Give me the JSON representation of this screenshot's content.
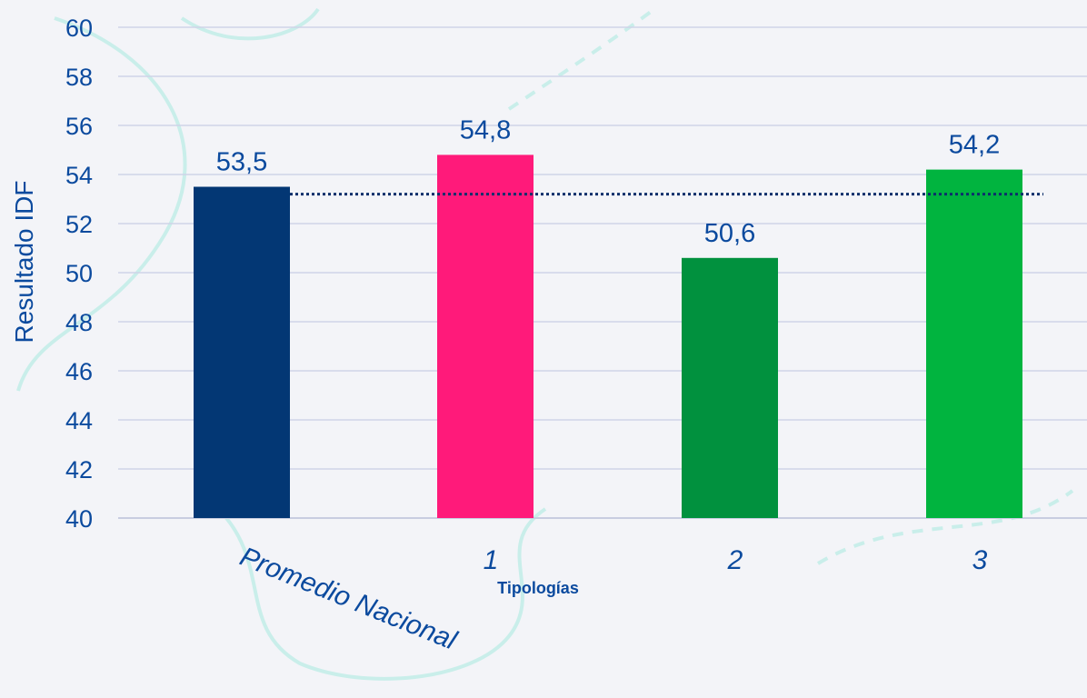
{
  "chart_data": {
    "type": "bar",
    "categories": [
      "Promedio Nacional",
      "1",
      "2",
      "3"
    ],
    "values": [
      53.5,
      54.8,
      50.6,
      54.2
    ],
    "value_labels": [
      "53,5",
      "54,8",
      "50,6",
      "54,2"
    ],
    "bar_colors": [
      "#033774",
      "#ff1a7a",
      "#01913e",
      "#01b43f"
    ],
    "reference_line": {
      "value": 53.2,
      "color": "#0d2f6b",
      "style": "dotted"
    },
    "title": "",
    "xlabel": "Tipologías",
    "ylabel": "Resultado IDF",
    "ylim": [
      40,
      60
    ],
    "yticks": [
      "40",
      "42",
      "44",
      "46",
      "48",
      "50",
      "52",
      "54",
      "56",
      "58",
      "60"
    ],
    "grid": true,
    "legend": "none"
  }
}
